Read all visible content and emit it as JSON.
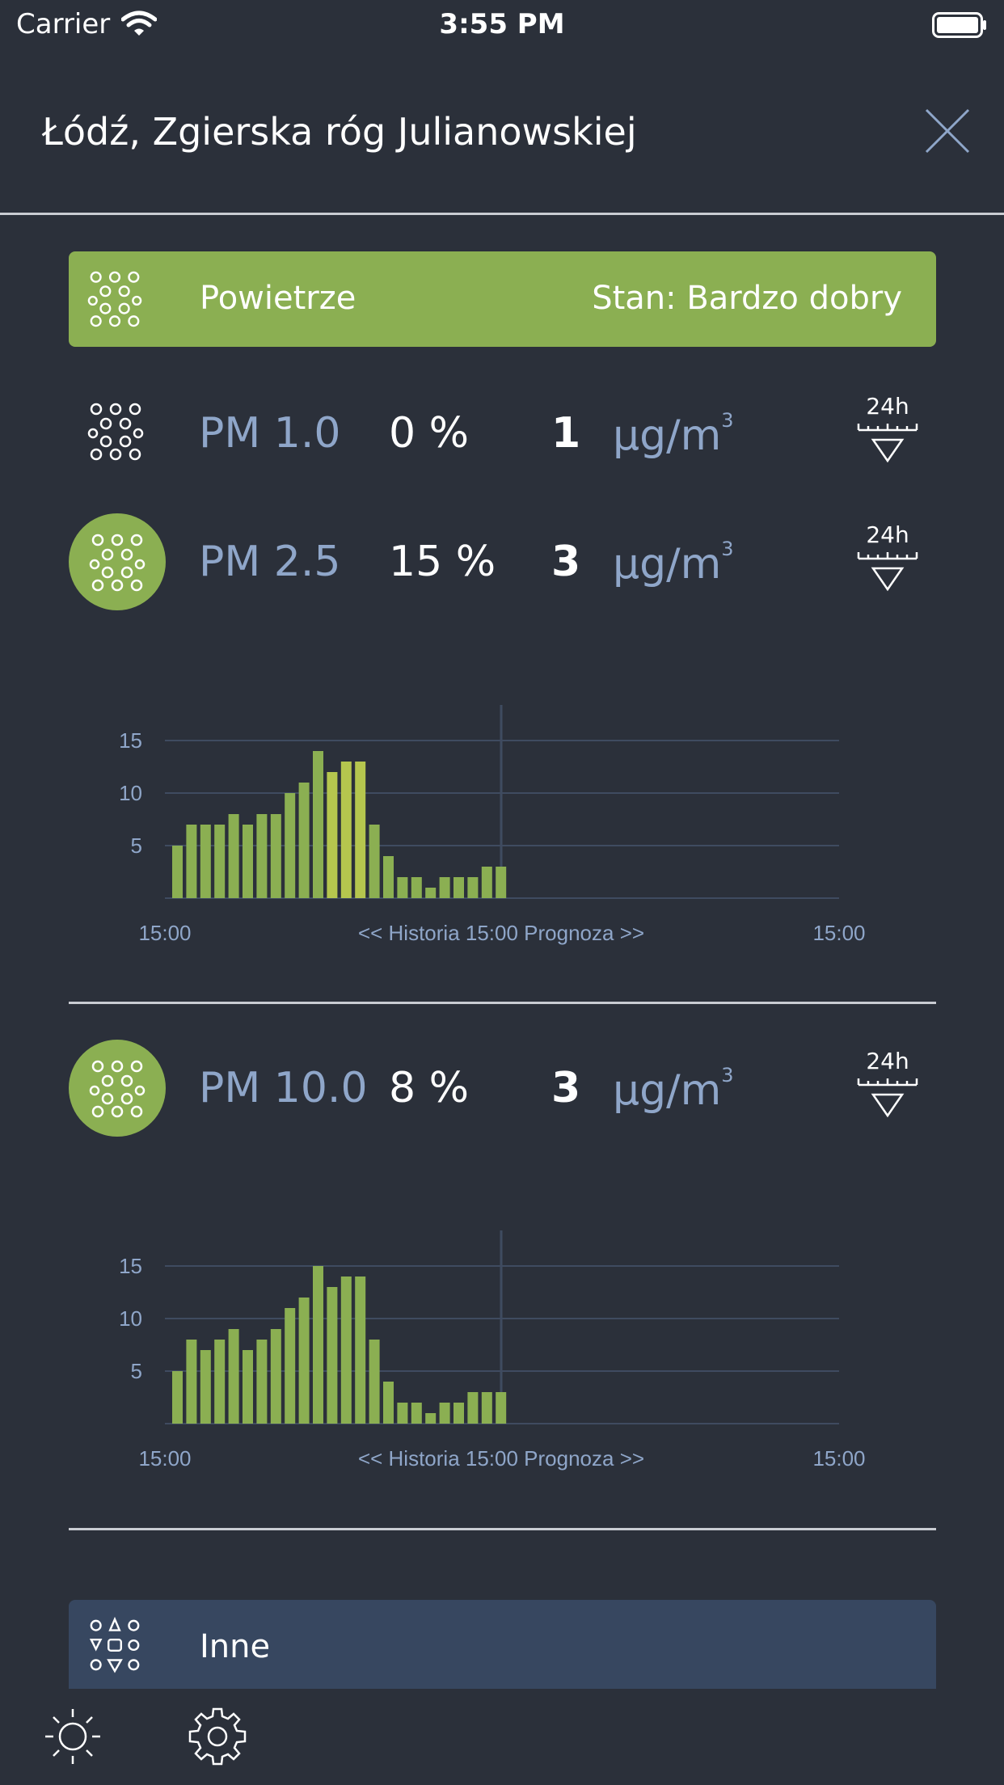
{
  "status_bar": {
    "carrier": "Carrier",
    "time": "3:55 PM"
  },
  "header": {
    "title": "Łódź, Zgierska róg Julianowskiej"
  },
  "air_section": {
    "label": "Powietrze",
    "status": "Stan: Bardzo dobry",
    "color": "#8baf52"
  },
  "pm_rows": [
    {
      "name": "PM 1.0",
      "percent": "0 %",
      "value": "1",
      "unit": "µg/m",
      "unit_sup": "3",
      "range": "24h"
    },
    {
      "name": "PM 2.5",
      "percent": "15 %",
      "value": "3",
      "unit": "µg/m",
      "unit_sup": "3",
      "range": "24h"
    },
    {
      "name": "PM 10.0",
      "percent": "8 %",
      "value": "3",
      "unit": "µg/m",
      "unit_sup": "3",
      "range": "24h"
    }
  ],
  "other_section": {
    "label": "Inne",
    "color": "#374760"
  },
  "chart_data": [
    {
      "type": "bar",
      "series": [
        {
          "values": [
            5,
            7,
            7,
            7,
            8,
            7,
            8,
            8,
            10,
            11,
            14,
            12,
            13,
            13,
            7,
            4,
            2,
            2,
            1,
            2,
            2,
            2,
            3,
            3
          ]
        }
      ],
      "highlighted_indices": [
        11,
        12,
        13
      ],
      "y_ticks": [
        "5",
        "10",
        "15"
      ],
      "ylim": [
        0,
        18
      ],
      "x_labels": {
        "start": "15:00",
        "center": "<< Historia 15:00 Prognoza >>",
        "end": "15:00"
      },
      "colors": {
        "bar": "#8baf52",
        "highlight": "#b5c64e",
        "grid": "#3f4b60"
      }
    },
    {
      "type": "bar",
      "series": [
        {
          "values": [
            5,
            8,
            7,
            8,
            9,
            7,
            8,
            9,
            11,
            12,
            15,
            13,
            14,
            14,
            8,
            4,
            2,
            2,
            1,
            2,
            2,
            3,
            3,
            3
          ]
        }
      ],
      "highlighted_indices": [],
      "y_ticks": [
        "5",
        "10",
        "15"
      ],
      "ylim": [
        0,
        18
      ],
      "x_labels": {
        "start": "15:00",
        "center": "<< Historia 15:00 Prognoza >>",
        "end": "15:00"
      },
      "colors": {
        "bar": "#8baf52",
        "highlight": "#b5c64e",
        "grid": "#3f4b60"
      }
    }
  ],
  "footer": {
    "icons": [
      "sun-icon",
      "gear-icon"
    ]
  }
}
